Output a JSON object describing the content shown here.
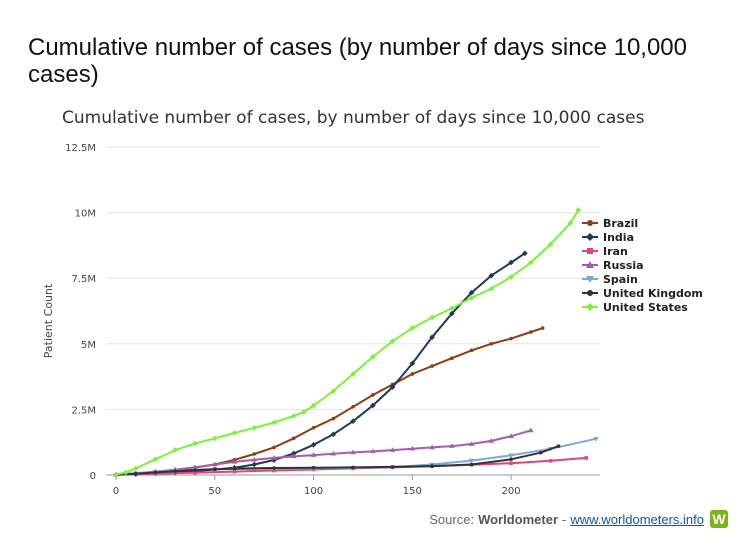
{
  "page": {
    "heading": "Cumulative number of cases (by number of days since 10,000 cases)"
  },
  "footer": {
    "source_prefix": "Source:",
    "source_name": "Worldometer",
    "separator": "-",
    "source_link": "www.worldometers.info",
    "logo_letter": "W"
  },
  "chart_data": {
    "type": "line",
    "title": "Cumulative number of cases, by number of days since 10,000 cases",
    "xlabel": "",
    "ylabel": "Patient Count",
    "xlim": [
      0,
      245
    ],
    "ylim": [
      0,
      12500000
    ],
    "x_ticks": [
      0,
      50,
      100,
      150,
      200
    ],
    "y_ticks": [
      0,
      2500000,
      5000000,
      7500000,
      10000000,
      12500000
    ],
    "y_tick_labels": [
      "0",
      "2.5M",
      "5M",
      "7.5M",
      "10M",
      "12.5M"
    ],
    "grid": "horizontal",
    "legend_position": "right",
    "series": [
      {
        "name": "Brazil",
        "color": "#8b3e0f",
        "marker": "circle",
        "x": [
          0,
          10,
          20,
          30,
          40,
          50,
          60,
          70,
          80,
          90,
          100,
          110,
          120,
          130,
          140,
          150,
          160,
          170,
          180,
          190,
          200,
          210,
          216
        ],
        "y": [
          10000,
          60000,
          120000,
          200000,
          290000,
          400000,
          580000,
          800000,
          1050000,
          1400000,
          1800000,
          2150000,
          2600000,
          3050000,
          3450000,
          3850000,
          4150000,
          4450000,
          4750000,
          5000000,
          5200000,
          5450000,
          5600000
        ]
      },
      {
        "name": "India",
        "color": "#1f3a55",
        "marker": "diamond",
        "x": [
          0,
          10,
          20,
          30,
          40,
          50,
          60,
          70,
          80,
          90,
          100,
          110,
          120,
          130,
          140,
          150,
          160,
          170,
          180,
          190,
          200,
          207
        ],
        "y": [
          10000,
          30000,
          60000,
          100000,
          150000,
          210000,
          280000,
          400000,
          570000,
          820000,
          1150000,
          1550000,
          2050000,
          2650000,
          3350000,
          4250000,
          5250000,
          6150000,
          6950000,
          7600000,
          8100000,
          8450000
        ]
      },
      {
        "name": "Iran",
        "color": "#e0457b",
        "marker": "square",
        "x": [
          0,
          20,
          40,
          60,
          80,
          100,
          120,
          140,
          160,
          180,
          200,
          220,
          238
        ],
        "y": [
          10000,
          50000,
          90000,
          130000,
          170000,
          210000,
          250000,
          290000,
          330000,
          390000,
          450000,
          540000,
          650000
        ]
      },
      {
        "name": "Russia",
        "color": "#a65db0",
        "marker": "triangle",
        "x": [
          0,
          10,
          20,
          30,
          40,
          50,
          60,
          70,
          80,
          90,
          100,
          110,
          120,
          130,
          140,
          150,
          160,
          170,
          180,
          190,
          200,
          210
        ],
        "y": [
          10000,
          70000,
          130000,
          200000,
          290000,
          400000,
          500000,
          580000,
          650000,
          710000,
          760000,
          810000,
          860000,
          900000,
          950000,
          1000000,
          1050000,
          1100000,
          1180000,
          1300000,
          1480000,
          1700000
        ]
      },
      {
        "name": "Spain",
        "color": "#7aa7e0",
        "marker": "triangle-down",
        "x": [
          0,
          10,
          20,
          30,
          40,
          50,
          60,
          80,
          100,
          120,
          140,
          160,
          180,
          200,
          220,
          243
        ],
        "y": [
          10000,
          60000,
          120000,
          170000,
          200000,
          220000,
          230000,
          240000,
          250000,
          270000,
          300000,
          400000,
          550000,
          750000,
          1000000,
          1380000
        ]
      },
      {
        "name": "United Kingdom",
        "color": "#333333",
        "marker": "circle",
        "x": [
          0,
          10,
          20,
          30,
          40,
          50,
          60,
          80,
          100,
          120,
          140,
          160,
          180,
          200,
          215,
          224
        ],
        "y": [
          10000,
          50000,
          100000,
          150000,
          190000,
          220000,
          245000,
          265000,
          280000,
          290000,
          310000,
          340000,
          400000,
          600000,
          850000,
          1100000
        ]
      },
      {
        "name": "United States",
        "color": "#7cf03a",
        "marker": "diamond",
        "x": [
          0,
          5,
          10,
          20,
          30,
          40,
          50,
          60,
          70,
          80,
          90,
          95,
          100,
          110,
          120,
          130,
          140,
          150,
          160,
          170,
          180,
          190,
          200,
          210,
          220,
          230,
          234
        ],
        "y": [
          10000,
          100000,
          250000,
          600000,
          950000,
          1200000,
          1400000,
          1600000,
          1800000,
          2000000,
          2250000,
          2400000,
          2650000,
          3200000,
          3850000,
          4500000,
          5100000,
          5600000,
          6000000,
          6350000,
          6750000,
          7100000,
          7550000,
          8100000,
          8800000,
          9600000,
          10100000
        ]
      }
    ]
  }
}
